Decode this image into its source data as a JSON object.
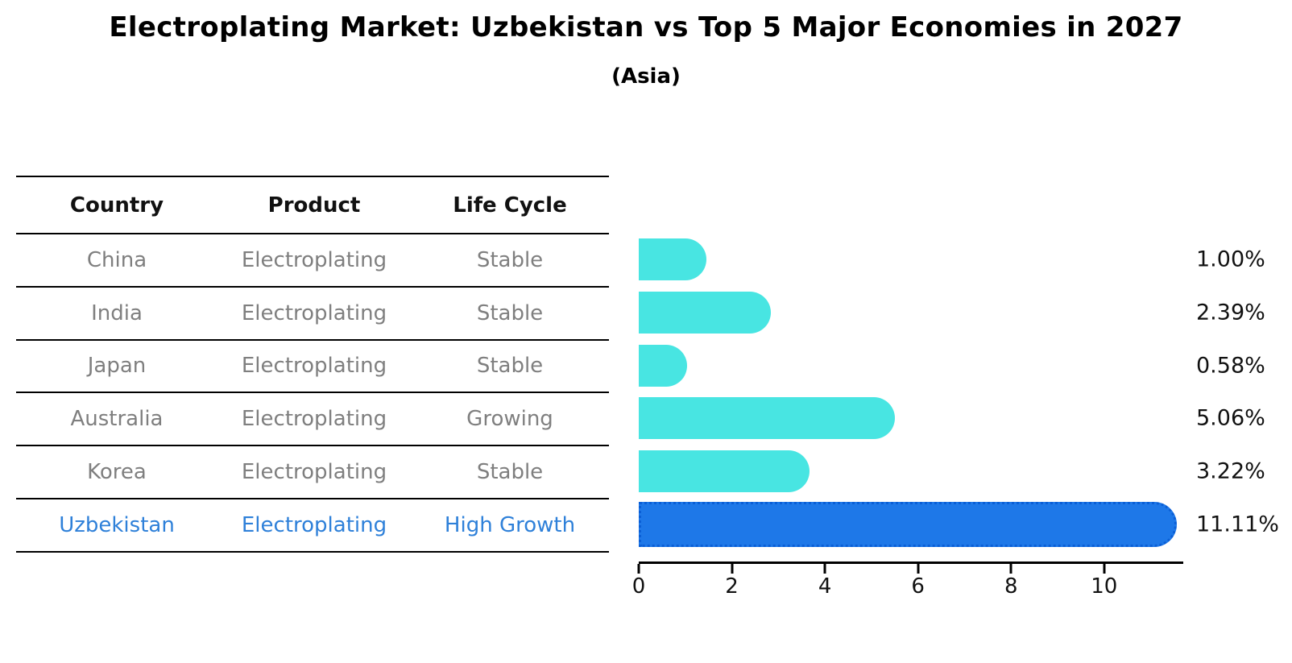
{
  "title": "Electroplating Market: Uzbekistan vs Top 5 Major Economies in 2027",
  "subtitle": "(Asia)",
  "table": {
    "headers": [
      "Country",
      "Product",
      "Life Cycle"
    ],
    "rows": [
      {
        "country": "China",
        "product": "Electroplating",
        "life_cycle": "Stable",
        "highlight": false
      },
      {
        "country": "India",
        "product": "Electroplating",
        "life_cycle": "Stable",
        "highlight": false
      },
      {
        "country": "Japan",
        "product": "Electroplating",
        "life_cycle": "Stable",
        "highlight": false
      },
      {
        "country": "Australia",
        "product": "Electroplating",
        "life_cycle": "Growing",
        "highlight": false
      },
      {
        "country": "Korea",
        "product": "Electroplating",
        "life_cycle": "Stable",
        "highlight": false
      },
      {
        "country": "Uzbekistan",
        "product": "Electroplating",
        "life_cycle": "High Growth",
        "highlight": true
      }
    ]
  },
  "chart_data": {
    "type": "bar",
    "orientation": "horizontal",
    "title": "Electroplating Market: Uzbekistan vs Top 5 Major Economies in 2027",
    "subtitle": "(Asia)",
    "categories": [
      "China",
      "India",
      "Japan",
      "Australia",
      "Korea",
      "Uzbekistan"
    ],
    "values": [
      1.0,
      2.39,
      0.58,
      5.06,
      3.22,
      11.11
    ],
    "value_labels": [
      "1.00%",
      "2.39%",
      "0.58%",
      "5.06%",
      "3.22%",
      "11.11%"
    ],
    "xticks": [
      0,
      2,
      4,
      6,
      8,
      10
    ],
    "xtick_labels": [
      "0",
      "2",
      "4",
      "6",
      "8",
      "10"
    ],
    "xlim": [
      0,
      11.7
    ],
    "grid": false,
    "legend": "none",
    "highlight_index": 5,
    "bar_color": "#48E5E2",
    "highlight_color": "#1E78E8",
    "highlight_border_color": "#0B5FD6",
    "xlabel": "",
    "ylabel": ""
  },
  "colors": {
    "title_text": "#000000",
    "header_text": "#111111",
    "cell_text": "#7f7f7f",
    "highlight_text": "#2E80D9",
    "axis": "#000000"
  }
}
